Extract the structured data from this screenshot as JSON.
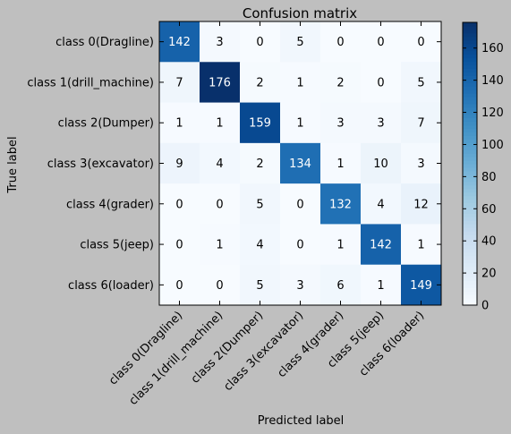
{
  "chart_data": {
    "type": "heatmap",
    "title": "Confusion matrix",
    "xlabel": "Predicted label",
    "ylabel": "True label",
    "row_labels": [
      "class 0(Dragline)",
      "class 1(drill_machine)",
      "class 2(Dumper)",
      "class 3(excavator)",
      "class 4(grader)",
      "class 5(jeep)",
      "class 6(loader)"
    ],
    "col_labels": [
      "class 0(Dragline)",
      "class 1(drill_machine)",
      "class 2(Dumper)",
      "class 3(excavator)",
      "class 4(grader)",
      "class 5(jeep)",
      "class 6(loader)"
    ],
    "values": [
      [
        142,
        3,
        0,
        5,
        0,
        0,
        0
      ],
      [
        7,
        176,
        2,
        1,
        2,
        0,
        5
      ],
      [
        1,
        1,
        159,
        1,
        3,
        3,
        7
      ],
      [
        9,
        4,
        2,
        134,
        1,
        10,
        3
      ],
      [
        0,
        0,
        5,
        0,
        132,
        4,
        12
      ],
      [
        0,
        1,
        4,
        0,
        1,
        142,
        1
      ],
      [
        0,
        0,
        5,
        3,
        6,
        1,
        149
      ]
    ],
    "colorbar": {
      "colormap": "Blues",
      "range": [
        0,
        176
      ],
      "ticks": [
        0,
        20,
        40,
        60,
        80,
        100,
        120,
        140,
        160
      ]
    }
  }
}
